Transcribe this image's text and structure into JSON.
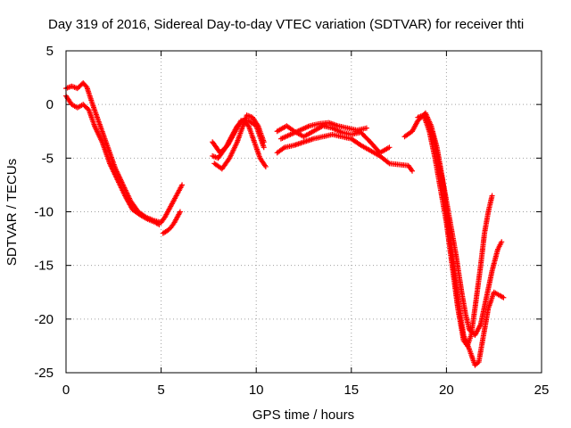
{
  "chart_data": {
    "type": "scatter",
    "title": "Day 319 of 2016, Sidereal Day-to-day VTEC variation (SDTVAR) for receiver thti",
    "xlabel": "GPS time / hours",
    "ylabel": "SDTVAR / TECUs",
    "xlim": [
      0,
      25
    ],
    "ylim": [
      -25,
      5
    ],
    "xticks": [
      0,
      5,
      10,
      15,
      20,
      25
    ],
    "yticks": [
      -25,
      -20,
      -15,
      -10,
      -5,
      0,
      5
    ],
    "grid": true,
    "legend": "none",
    "marker": "+",
    "color": "#ff0000",
    "series": [
      {
        "x": [
          0,
          0.3,
          0.6,
          0.9,
          1.1,
          1.4,
          1.8,
          2.2,
          2.6,
          3.0,
          3.4,
          3.8,
          4.2,
          4.6,
          5.0,
          5.2,
          5.5,
          5.8,
          6.1
        ],
        "y": [
          1.5,
          1.7,
          1.5,
          2.0,
          1.6,
          0.0,
          -2.0,
          -4.0,
          -6.0,
          -7.5,
          -9.0,
          -10.0,
          -10.5,
          -10.8,
          -11.0,
          -10.5,
          -9.5,
          -8.5,
          -7.5
        ]
      },
      {
        "x": [
          0,
          0.3,
          0.6,
          0.9,
          1.2,
          1.5,
          1.9,
          2.3,
          2.7,
          3.1,
          3.5,
          3.9,
          4.3,
          4.7,
          4.9
        ],
        "y": [
          0.8,
          0.0,
          -0.3,
          0.0,
          -0.5,
          -2.0,
          -3.5,
          -5.5,
          -7.0,
          -8.5,
          -9.8,
          -10.3,
          -10.7,
          -11.0,
          -11.2
        ]
      },
      {
        "x": [
          5.1,
          5.3,
          5.5,
          5.7,
          6.0
        ],
        "y": [
          -12.0,
          -11.8,
          -11.5,
          -11.0,
          -10.0
        ]
      },
      {
        "x": [
          7.7,
          8.0,
          8.4,
          8.7,
          9.0,
          9.3,
          9.6,
          9.9,
          10.2,
          10.5
        ],
        "y": [
          -4.8,
          -5.0,
          -4.0,
          -3.0,
          -2.0,
          -1.5,
          -2.0,
          -3.5,
          -5.0,
          -5.8
        ]
      },
      {
        "x": [
          7.8,
          8.2,
          8.6,
          9.0,
          9.3,
          9.5,
          9.8,
          10.1,
          10.4
        ],
        "y": [
          -5.5,
          -6.0,
          -5.0,
          -3.5,
          -2.0,
          -1.0,
          -1.2,
          -2.0,
          -3.5
        ]
      },
      {
        "x": [
          7.7,
          8.1,
          8.5,
          8.9,
          9.2,
          9.6,
          10.0,
          10.4
        ],
        "y": [
          -3.5,
          -4.5,
          -3.8,
          -2.5,
          -1.5,
          -1.5,
          -2.0,
          -4.0
        ]
      },
      {
        "x": [
          11.1,
          11.5,
          12.0,
          12.5,
          13.0,
          13.5,
          14.0,
          14.5,
          15.0,
          15.5,
          16.0,
          16.5,
          17.0,
          17.5,
          18.0,
          18.2
        ],
        "y": [
          -4.5,
          -4.0,
          -3.8,
          -3.5,
          -3.2,
          -3.0,
          -2.8,
          -3.0,
          -3.2,
          -3.8,
          -4.3,
          -4.8,
          -5.5,
          -5.6,
          -5.7,
          -6.2
        ]
      },
      {
        "x": [
          11.1,
          11.6,
          12.0,
          12.5,
          13.0,
          13.5,
          14.0,
          14.5,
          15.0,
          15.5,
          16.0,
          16.5,
          17.0
        ],
        "y": [
          -2.5,
          -2.0,
          -2.5,
          -3.0,
          -2.5,
          -2.0,
          -2.2,
          -2.6,
          -2.8,
          -2.6,
          -3.5,
          -4.5,
          -4.0
        ]
      },
      {
        "x": [
          11.3,
          11.8,
          12.3,
          12.8,
          13.3,
          13.8,
          14.3,
          14.8,
          15.3,
          15.8
        ],
        "y": [
          -3.2,
          -2.8,
          -2.4,
          -2.0,
          -1.8,
          -1.7,
          -2.0,
          -2.2,
          -2.4,
          -2.2
        ]
      },
      {
        "x": [
          17.8,
          18.2,
          18.5,
          18.9,
          19.2,
          19.5,
          19.8,
          20.0,
          20.3,
          20.6,
          20.9,
          21.2,
          21.5,
          21.7,
          22.0,
          22.2,
          22.5,
          22.8,
          23.0
        ],
        "y": [
          -3.0,
          -2.5,
          -1.5,
          -0.8,
          -2.0,
          -4.0,
          -7.0,
          -10.0,
          -14.0,
          -18.0,
          -21.5,
          -22.8,
          -24.3,
          -24.0,
          -21.0,
          -19.0,
          -17.5,
          -17.8,
          -18.0
        ]
      },
      {
        "x": [
          18.5,
          18.8,
          19.1,
          19.4,
          19.7,
          20.0,
          20.3,
          20.6,
          20.9,
          21.1,
          21.3,
          21.5,
          21.8,
          22.0,
          22.2,
          22.4
        ],
        "y": [
          -1.2,
          -1.0,
          -2.5,
          -5.0,
          -8.0,
          -11.0,
          -15.0,
          -19.0,
          -22.0,
          -22.5,
          -21.5,
          -19.0,
          -15.0,
          -12.0,
          -10.0,
          -8.5
        ]
      },
      {
        "x": [
          19.0,
          19.3,
          19.6,
          19.9,
          20.2,
          20.5,
          20.8,
          21.0,
          21.2,
          21.5,
          21.8,
          22.1,
          22.4,
          22.7,
          22.9
        ],
        "y": [
          -1.5,
          -3.0,
          -5.5,
          -8.0,
          -11.0,
          -14.0,
          -17.5,
          -19.5,
          -21.0,
          -21.5,
          -20.5,
          -18.0,
          -15.5,
          -13.5,
          -12.8
        ]
      }
    ]
  }
}
